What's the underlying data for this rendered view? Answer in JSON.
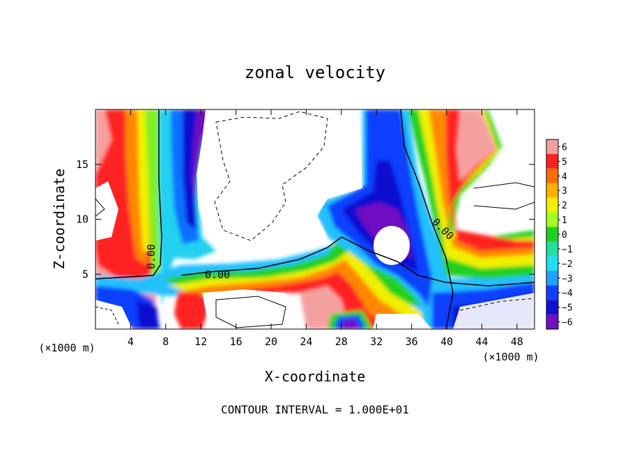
{
  "chart_data": {
    "type": "heatmap",
    "title": "zonal velocity",
    "xlabel": "X-coordinate",
    "ylabel": "Z-coordinate",
    "x_unit": "(×1000 m)",
    "y_unit": "(×1000 m)",
    "x_ticks": [
      4,
      8,
      12,
      16,
      20,
      24,
      28,
      32,
      36,
      40,
      44,
      48
    ],
    "y_ticks": [
      5,
      10,
      15
    ],
    "xlim": [
      0,
      50
    ],
    "ylim": [
      0,
      20
    ],
    "colorbar": {
      "levels": [
        6,
        5,
        4,
        3,
        2,
        1,
        0,
        -1,
        -2,
        -3,
        -4,
        -5,
        -6
      ],
      "colors": [
        "#f5a0a0",
        "#ff2020",
        "#ff6a00",
        "#ffb000",
        "#f0f000",
        "#a0ff20",
        "#20d020",
        "#20e0a0",
        "#20e0f0",
        "#20a0ff",
        "#1040ff",
        "#1010d0",
        "#7010c0"
      ]
    },
    "contour_label": "0.00",
    "footer": "CONTOUR INTERVAL = 1.000E+01"
  }
}
